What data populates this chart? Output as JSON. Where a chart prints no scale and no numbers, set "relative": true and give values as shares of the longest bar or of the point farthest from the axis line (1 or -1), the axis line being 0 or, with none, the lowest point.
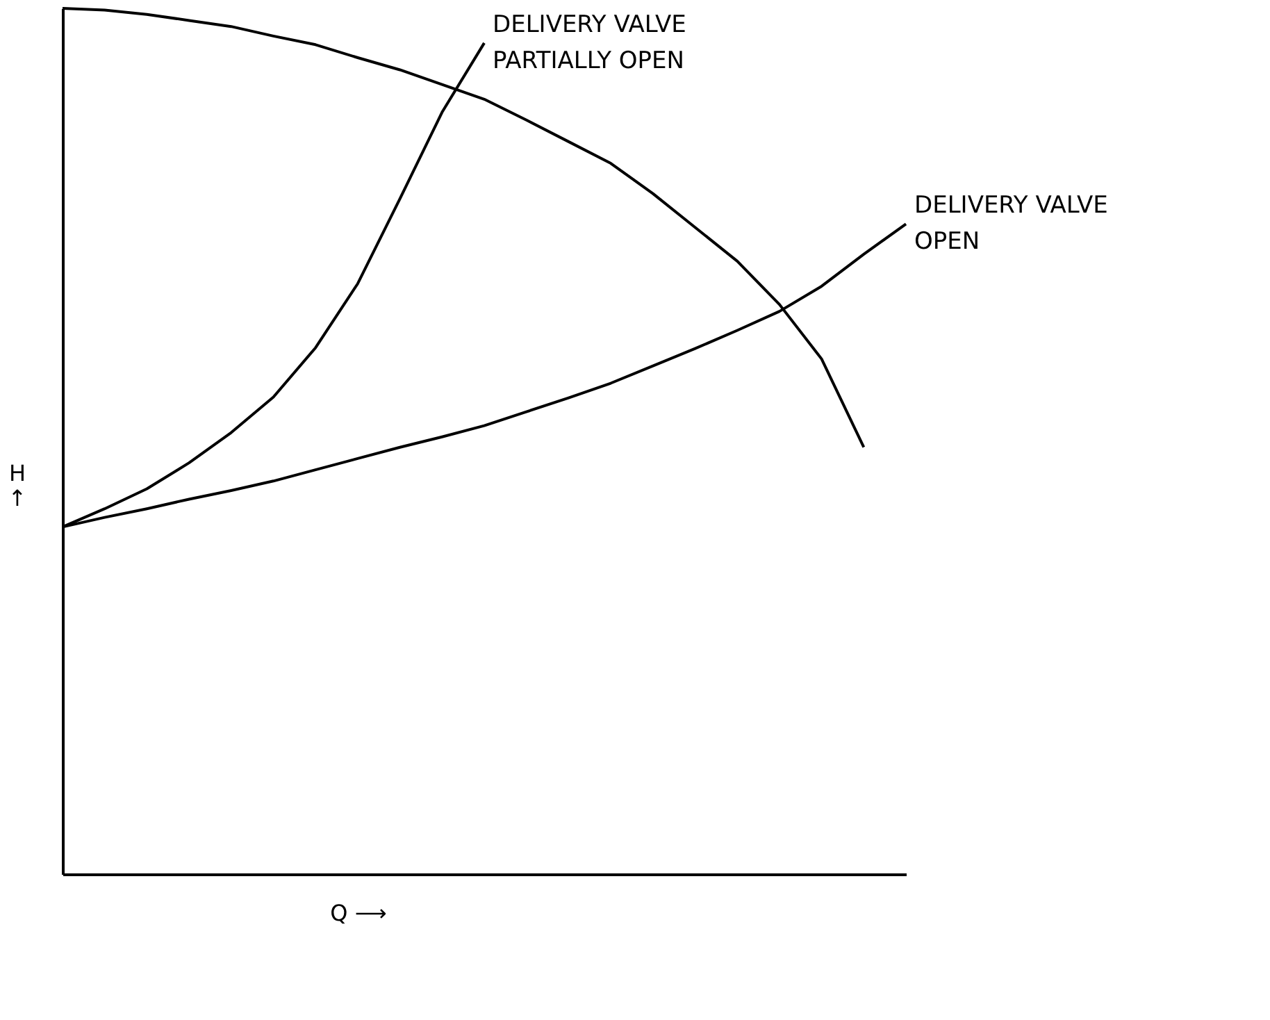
{
  "chart_data": {
    "type": "line",
    "relative": true,
    "xlabel": "Q ⟶",
    "ylabel": "H\n↑",
    "tick_labels": false,
    "grid": false,
    "legend": false,
    "marker": "none",
    "line_style": "solid",
    "categories": [
      null,
      null,
      null,
      null,
      null,
      null,
      null,
      null,
      null,
      null,
      null,
      null,
      null,
      null,
      null,
      null,
      null,
      null,
      null,
      null,
      null
    ],
    "series": [
      {
        "color": "#000000",
        "values": [
          1,
          0.998,
          0.993,
          0.986,
          0.979,
          0.968,
          0.958,
          0.943,
          0.929,
          0.912,
          0.895,
          0.871,
          0.846,
          0.821,
          0.786,
          0.747,
          0.708,
          0.658,
          0.595,
          0.493,
          null
        ]
      },
      {
        "name": "DELIVERY VALVE\nPARTIALLY OPEN",
        "color": "#000000",
        "values": [
          0.401,
          0.422,
          0.445,
          0.475,
          0.51,
          0.551,
          0.608,
          0.682,
          0.78,
          0.88,
          0.96,
          null,
          null,
          null,
          null,
          null,
          null,
          null,
          null,
          null,
          null
        ]
      },
      {
        "name": "DELIVERY VALVE\nOPEN",
        "color": "#000000",
        "values": [
          0.401,
          0.412,
          0.422,
          0.433,
          0.443,
          0.454,
          0.467,
          0.48,
          0.493,
          0.505,
          0.518,
          0.534,
          0.55,
          0.567,
          0.587,
          0.607,
          0.628,
          0.65,
          0.679,
          0.716,
          0.751
        ]
      }
    ]
  }
}
